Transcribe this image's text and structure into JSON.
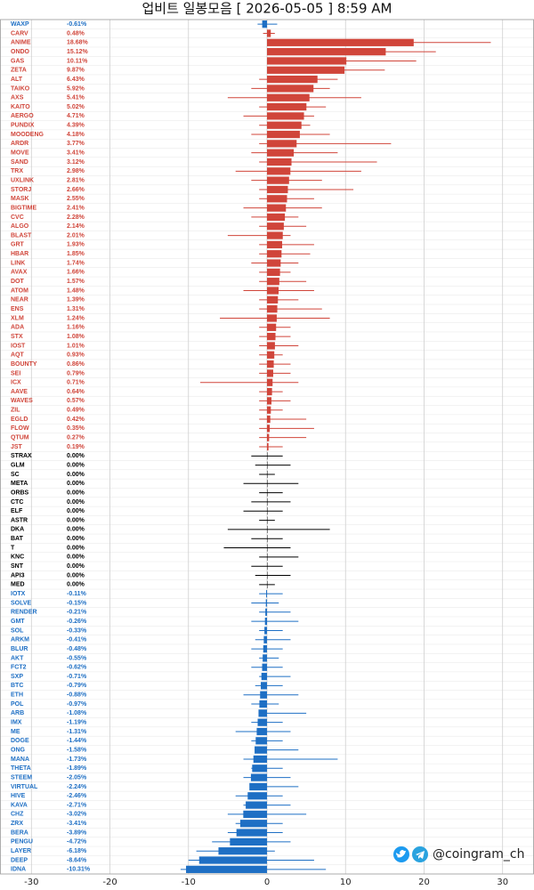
{
  "chart_data": {
    "type": "range-bar",
    "title": "업비트 일봉모음 [ 2026-05-05 ]  8:59 AM",
    "watermark": "@coingram_ch",
    "xlim": [
      -34,
      34
    ],
    "xticks": [
      -30,
      -20,
      -10,
      0,
      10,
      20,
      30
    ],
    "grid": true,
    "colors": {
      "positive": "#d0453a",
      "zero": "#000000",
      "negative": "#1e6fc4"
    },
    "categories": [
      "WAXP",
      "CARV",
      "ANIME",
      "ONDO",
      "GAS",
      "ZETA",
      "ALT",
      "TAIKO",
      "AXS",
      "KAITO",
      "AERGO",
      "PUNDIX",
      "MOODENG",
      "ARDR",
      "MOVE",
      "SAND",
      "TRX",
      "UXLINK",
      "STORJ",
      "MASK",
      "BIGTIME",
      "CVC",
      "ALGO",
      "BLAST",
      "GRT",
      "HBAR",
      "LINK",
      "AVAX",
      "DOT",
      "ATOM",
      "NEAR",
      "ENS",
      "XLM",
      "ADA",
      "STX",
      "IOST",
      "AQT",
      "BOUNTY",
      "SEI",
      "ICX",
      "AAVE",
      "WAVES",
      "ZIL",
      "EGLD",
      "FLOW",
      "QTUM",
      "JST",
      "STRAX",
      "GLM",
      "SC",
      "META",
      "ORBS",
      "CTC",
      "ELF",
      "ASTR",
      "DKA",
      "BAT",
      "T",
      "KNC",
      "SNT",
      "API3",
      "MED",
      "IOTX",
      "SOLVE",
      "RENDER",
      "GMT",
      "SOL",
      "ARKM",
      "BLUR",
      "AKT",
      "FCT2",
      "SXP",
      "BTC",
      "ETH",
      "POL",
      "ARB",
      "IMX",
      "ME",
      "DOGE",
      "ONG",
      "MANA",
      "THETA",
      "STEEM",
      "VIRTUAL",
      "HIVE",
      "KAVA",
      "CHZ",
      "ZRX",
      "BERA",
      "PENGU",
      "LAYER",
      "DEEP",
      "IDNA"
    ],
    "values": [
      -0.61,
      0.48,
      18.68,
      15.12,
      10.11,
      9.87,
      6.43,
      5.92,
      5.41,
      5.02,
      4.71,
      4.39,
      4.18,
      3.77,
      3.41,
      3.12,
      2.98,
      2.81,
      2.66,
      2.55,
      2.41,
      2.28,
      2.14,
      2.01,
      1.93,
      1.85,
      1.74,
      1.66,
      1.57,
      1.48,
      1.39,
      1.31,
      1.24,
      1.16,
      1.08,
      1.01,
      0.93,
      0.86,
      0.79,
      0.71,
      0.64,
      0.57,
      0.49,
      0.42,
      0.35,
      0.27,
      0.19,
      0,
      0,
      0,
      0,
      0,
      0,
      0,
      0,
      0,
      0,
      0,
      0,
      0,
      0,
      0,
      -0.11,
      -0.15,
      -0.21,
      -0.26,
      -0.33,
      -0.41,
      -0.48,
      -0.55,
      -0.62,
      -0.71,
      -0.79,
      -0.88,
      -0.97,
      -1.08,
      -1.19,
      -1.31,
      -1.44,
      -1.58,
      -1.73,
      -1.89,
      -2.05,
      -2.24,
      -2.46,
      -2.71,
      -3.02,
      -3.41,
      -3.89,
      -4.72,
      -6.18,
      -8.64,
      -10.31
    ],
    "value_labels": [
      "-0.61%",
      "0.48%",
      "18.68%",
      "15.12%",
      "10.11%",
      "9.87%",
      "6.43%",
      "5.92%",
      "5.41%",
      "5.02%",
      "4.71%",
      "4.39%",
      "4.18%",
      "3.77%",
      "3.41%",
      "3.12%",
      "2.98%",
      "2.81%",
      "2.66%",
      "2.55%",
      "2.41%",
      "2.28%",
      "2.14%",
      "2.01%",
      "1.93%",
      "1.85%",
      "1.74%",
      "1.66%",
      "1.57%",
      "1.48%",
      "1.39%",
      "1.31%",
      "1.24%",
      "1.16%",
      "1.08%",
      "1.01%",
      "0.93%",
      "0.86%",
      "0.79%",
      "0.71%",
      "0.64%",
      "0.57%",
      "0.49%",
      "0.42%",
      "0.35%",
      "0.27%",
      "0.19%",
      "0.00%",
      "0.00%",
      "0.00%",
      "0.00%",
      "0.00%",
      "0.00%",
      "0.00%",
      "0.00%",
      "0.00%",
      "0.00%",
      "0.00%",
      "0.00%",
      "0.00%",
      "0.00%",
      "0.00%",
      "-0.11%",
      "-0.15%",
      "-0.21%",
      "-0.26%",
      "-0.33%",
      "-0.41%",
      "-0.48%",
      "-0.55%",
      "-0.62%",
      "-0.71%",
      "-0.79%",
      "-0.88%",
      "-0.97%",
      "-1.08%",
      "-1.19%",
      "-1.31%",
      "-1.44%",
      "-1.58%",
      "-1.73%",
      "-1.89%",
      "-2.05%",
      "-2.24%",
      "-2.46%",
      "-2.71%",
      "-3.02%",
      "-3.41%",
      "-3.89%",
      "-4.72%",
      "-6.18%",
      "-8.64%",
      "-10.31%"
    ],
    "low": [
      -1.2,
      -0.5,
      0,
      0,
      0,
      0,
      -1,
      -2,
      -5,
      -1,
      -3,
      -1,
      -2,
      -1,
      -2,
      -1,
      -4,
      -2,
      -1,
      -1,
      -3,
      -2,
      -1,
      -5,
      -1,
      -1,
      -2,
      -1,
      -1,
      -3,
      -1,
      -1,
      -6,
      -1,
      -1,
      -1,
      -1,
      -1,
      -1,
      -8.5,
      -1,
      -1,
      -1,
      -1,
      -1,
      -1,
      -1,
      -2,
      -1.5,
      -1,
      -3,
      -1,
      -2,
      -3,
      -1,
      -5,
      -2,
      -5.5,
      -1,
      -2,
      -1.5,
      -1,
      -1,
      -2,
      -1,
      -2,
      -1,
      -1.5,
      -2,
      -1,
      -2,
      -1,
      -1.5,
      -3,
      -2,
      -1,
      -2,
      -4,
      -2,
      -1,
      -3,
      -2,
      -3,
      -2,
      -4,
      -3,
      -5,
      -4,
      -5,
      -7,
      -9,
      -10,
      -11
    ],
    "high": [
      1.3,
      1.0,
      28.5,
      21.5,
      19,
      15,
      9,
      8,
      12,
      7.5,
      6,
      5.5,
      8,
      15.8,
      9,
      14,
      12,
      7,
      11,
      6,
      7,
      4,
      5,
      3,
      6,
      5.5,
      4,
      3,
      5,
      6,
      4,
      7,
      8,
      3,
      3,
      4,
      2,
      3,
      3,
      4,
      2,
      3,
      2,
      5,
      6,
      5,
      2,
      2,
      3,
      1,
      4,
      2,
      3,
      2,
      1,
      8,
      2,
      3,
      4,
      2,
      3,
      1,
      2,
      1.5,
      3,
      4,
      2,
      3,
      2,
      1.5,
      2,
      3,
      2,
      4,
      1.5,
      5,
      2,
      3,
      2,
      4,
      9,
      2,
      3,
      4,
      2,
      3,
      5,
      2,
      2,
      3,
      1,
      6,
      7.5
    ]
  }
}
